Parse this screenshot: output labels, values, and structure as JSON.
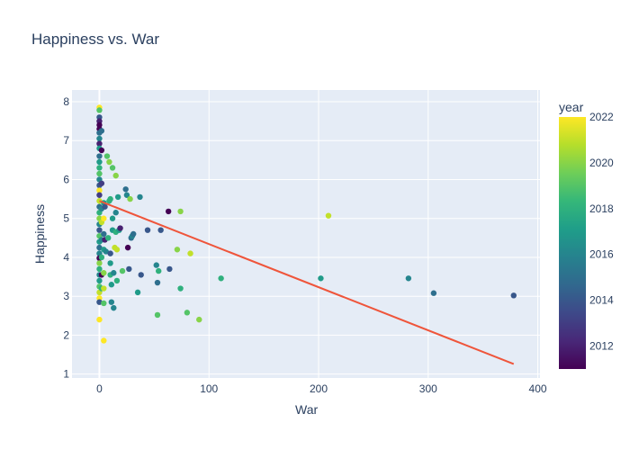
{
  "chart_data": {
    "type": "scatter",
    "title": "Happiness vs. War",
    "xlabel": "War",
    "ylabel": "Happiness",
    "xlim": [
      -25,
      402
    ],
    "ylim": [
      0.9,
      8.3
    ],
    "x_ticks": [
      0,
      100,
      200,
      300,
      400
    ],
    "y_ticks": [
      1,
      2,
      3,
      4,
      5,
      6,
      7,
      8
    ],
    "grid": true,
    "color_scale": {
      "title": "year",
      "name": "viridis",
      "range": [
        2011,
        2022
      ],
      "ticks": [
        2012,
        2014,
        2016,
        2018,
        2020,
        2022
      ],
      "colors": [
        "#440154",
        "#482878",
        "#3e4989",
        "#31688e",
        "#26828e",
        "#1f9e89",
        "#35b779",
        "#6ece58",
        "#b5de2b",
        "#fde725"
      ]
    },
    "trendline": {
      "color": "#ef553b",
      "x": [
        0,
        378
      ],
      "y": [
        5.45,
        1.26
      ]
    },
    "points": [
      {
        "x": 0,
        "y": 7.85,
        "year": 2022
      },
      {
        "x": 0,
        "y": 7.78,
        "year": 2019
      },
      {
        "x": 0,
        "y": 7.6,
        "year": 2014
      },
      {
        "x": 0,
        "y": 7.5,
        "year": 2012
      },
      {
        "x": 0,
        "y": 7.4,
        "year": 2011
      },
      {
        "x": 0,
        "y": 7.3,
        "year": 2011
      },
      {
        "x": 0,
        "y": 7.2,
        "year": 2015
      },
      {
        "x": 0,
        "y": 7.05,
        "year": 2016
      },
      {
        "x": 0,
        "y": 6.92,
        "year": 2012
      },
      {
        "x": 0,
        "y": 6.8,
        "year": 2017
      },
      {
        "x": 0,
        "y": 6.6,
        "year": 2015
      },
      {
        "x": 0,
        "y": 6.45,
        "year": 2017
      },
      {
        "x": 0,
        "y": 6.3,
        "year": 2018
      },
      {
        "x": 0,
        "y": 6.15,
        "year": 2019
      },
      {
        "x": 0,
        "y": 6.0,
        "year": 2016
      },
      {
        "x": 0,
        "y": 5.85,
        "year": 2014
      },
      {
        "x": 0,
        "y": 5.72,
        "year": 2022
      },
      {
        "x": 0,
        "y": 5.6,
        "year": 2013
      },
      {
        "x": 0,
        "y": 5.45,
        "year": 2021
      },
      {
        "x": 0,
        "y": 5.3,
        "year": 2015
      },
      {
        "x": 0,
        "y": 5.15,
        "year": 2018
      },
      {
        "x": 0,
        "y": 5.0,
        "year": 2020
      },
      {
        "x": 0,
        "y": 4.85,
        "year": 2016
      },
      {
        "x": 0,
        "y": 4.7,
        "year": 2014
      },
      {
        "x": 0,
        "y": 4.55,
        "year": 2019
      },
      {
        "x": 0,
        "y": 4.4,
        "year": 2017
      },
      {
        "x": 0,
        "y": 4.25,
        "year": 2015
      },
      {
        "x": 0,
        "y": 4.1,
        "year": 2016
      },
      {
        "x": 0,
        "y": 3.98,
        "year": 2011
      },
      {
        "x": 0,
        "y": 3.85,
        "year": 2020
      },
      {
        "x": 0,
        "y": 3.7,
        "year": 2018
      },
      {
        "x": 0,
        "y": 3.55,
        "year": 2016
      },
      {
        "x": 0,
        "y": 3.4,
        "year": 2017
      },
      {
        "x": 0,
        "y": 3.25,
        "year": 2019
      },
      {
        "x": 0,
        "y": 3.1,
        "year": 2021
      },
      {
        "x": 0,
        "y": 2.95,
        "year": 2022
      },
      {
        "x": 0,
        "y": 2.85,
        "year": 2014
      },
      {
        "x": 0,
        "y": 2.4,
        "year": 2022
      },
      {
        "x": 2,
        "y": 7.25,
        "year": 2015
      },
      {
        "x": 2,
        "y": 6.75,
        "year": 2011
      },
      {
        "x": 2,
        "y": 5.9,
        "year": 2013
      },
      {
        "x": 2,
        "y": 5.25,
        "year": 2016
      },
      {
        "x": 2,
        "y": 4.9,
        "year": 2021
      },
      {
        "x": 2,
        "y": 4.45,
        "year": 2016
      },
      {
        "x": 2,
        "y": 4.0,
        "year": 2018
      },
      {
        "x": 2,
        "y": 3.55,
        "year": 2011
      },
      {
        "x": 2,
        "y": 3.2,
        "year": 2018
      },
      {
        "x": 4,
        "y": 5.4,
        "year": 2017
      },
      {
        "x": 4,
        "y": 5.0,
        "year": 2022
      },
      {
        "x": 4,
        "y": 4.6,
        "year": 2015
      },
      {
        "x": 4,
        "y": 4.2,
        "year": 2017
      },
      {
        "x": 4,
        "y": 3.6,
        "year": 2020
      },
      {
        "x": 4,
        "y": 3.2,
        "year": 2021
      },
      {
        "x": 4,
        "y": 2.82,
        "year": 2019
      },
      {
        "x": 4,
        "y": 1.86,
        "year": 2022
      },
      {
        "x": 5,
        "y": 5.3,
        "year": 2014
      },
      {
        "x": 5,
        "y": 4.45,
        "year": 2012
      },
      {
        "x": 6,
        "y": 4.15,
        "year": 2016
      },
      {
        "x": 7,
        "y": 6.6,
        "year": 2019
      },
      {
        "x": 8,
        "y": 4.5,
        "year": 2018
      },
      {
        "x": 9,
        "y": 6.45,
        "year": 2020
      },
      {
        "x": 9,
        "y": 5.45,
        "year": 2018
      },
      {
        "x": 10,
        "y": 5.5,
        "year": 2018
      },
      {
        "x": 10,
        "y": 4.1,
        "year": 2014
      },
      {
        "x": 10,
        "y": 3.85,
        "year": 2017
      },
      {
        "x": 10,
        "y": 3.55,
        "year": 2018
      },
      {
        "x": 11,
        "y": 3.3,
        "year": 2017
      },
      {
        "x": 11,
        "y": 2.85,
        "year": 2016
      },
      {
        "x": 12,
        "y": 6.3,
        "year": 2019
      },
      {
        "x": 12,
        "y": 5.0,
        "year": 2017
      },
      {
        "x": 12,
        "y": 4.7,
        "year": 2017
      },
      {
        "x": 13,
        "y": 3.6,
        "year": 2016
      },
      {
        "x": 13,
        "y": 2.7,
        "year": 2016
      },
      {
        "x": 14,
        "y": 4.25,
        "year": 2021
      },
      {
        "x": 15,
        "y": 6.1,
        "year": 2020
      },
      {
        "x": 15,
        "y": 5.15,
        "year": 2016
      },
      {
        "x": 15,
        "y": 4.65,
        "year": 2018
      },
      {
        "x": 16,
        "y": 4.2,
        "year": 2021
      },
      {
        "x": 16,
        "y": 3.4,
        "year": 2018
      },
      {
        "x": 17,
        "y": 5.55,
        "year": 2017
      },
      {
        "x": 18,
        "y": 4.7,
        "year": 2017
      },
      {
        "x": 19,
        "y": 4.75,
        "year": 2012
      },
      {
        "x": 21,
        "y": 3.65,
        "year": 2019
      },
      {
        "x": 24,
        "y": 5.75,
        "year": 2015
      },
      {
        "x": 25,
        "y": 5.6,
        "year": 2016
      },
      {
        "x": 26,
        "y": 4.25,
        "year": 2011
      },
      {
        "x": 27,
        "y": 3.7,
        "year": 2014
      },
      {
        "x": 28,
        "y": 5.5,
        "year": 2020
      },
      {
        "x": 29,
        "y": 4.5,
        "year": 2015
      },
      {
        "x": 30,
        "y": 4.55,
        "year": 2016
      },
      {
        "x": 31,
        "y": 4.6,
        "year": 2015
      },
      {
        "x": 35,
        "y": 3.1,
        "year": 2017
      },
      {
        "x": 37,
        "y": 5.55,
        "year": 2016
      },
      {
        "x": 38,
        "y": 3.55,
        "year": 2014
      },
      {
        "x": 44,
        "y": 4.7,
        "year": 2014
      },
      {
        "x": 52,
        "y": 3.8,
        "year": 2016
      },
      {
        "x": 53,
        "y": 3.35,
        "year": 2015
      },
      {
        "x": 53,
        "y": 2.52,
        "year": 2019
      },
      {
        "x": 54,
        "y": 3.65,
        "year": 2018
      },
      {
        "x": 56,
        "y": 4.7,
        "year": 2014
      },
      {
        "x": 63,
        "y": 5.18,
        "year": 2011
      },
      {
        "x": 64,
        "y": 3.7,
        "year": 2014
      },
      {
        "x": 71,
        "y": 4.2,
        "year": 2020
      },
      {
        "x": 74,
        "y": 5.18,
        "year": 2020
      },
      {
        "x": 74,
        "y": 3.2,
        "year": 2018
      },
      {
        "x": 80,
        "y": 2.58,
        "year": 2019
      },
      {
        "x": 83,
        "y": 4.1,
        "year": 2021
      },
      {
        "x": 91,
        "y": 2.4,
        "year": 2020
      },
      {
        "x": 111,
        "y": 3.46,
        "year": 2018
      },
      {
        "x": 202,
        "y": 3.46,
        "year": 2017
      },
      {
        "x": 209,
        "y": 5.07,
        "year": 2021
      },
      {
        "x": 282,
        "y": 3.46,
        "year": 2016
      },
      {
        "x": 305,
        "y": 3.08,
        "year": 2015
      },
      {
        "x": 378,
        "y": 3.02,
        "year": 2014
      }
    ]
  }
}
